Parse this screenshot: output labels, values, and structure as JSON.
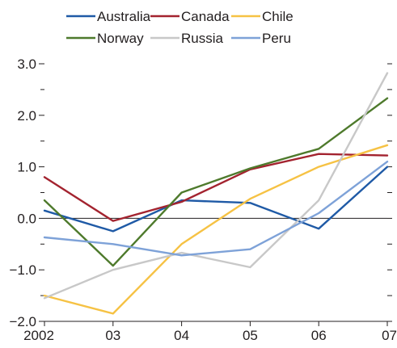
{
  "chart_data": {
    "type": "line",
    "x": [
      "2002",
      "03",
      "04",
      "05",
      "06",
      "07"
    ],
    "ylim": [
      -2.0,
      3.0
    ],
    "yticks": [
      {
        "value": 3.0,
        "label": "3.0"
      },
      {
        "value": 2.0,
        "label": "2.0"
      },
      {
        "value": 1.0,
        "label": "1.0"
      },
      {
        "value": 0.0,
        "label": "0.0"
      },
      {
        "value": -1.0,
        "label": "−1.0"
      },
      {
        "value": -2.0,
        "label": "−2.0"
      }
    ],
    "minor_ytick_step": 0.5,
    "zero_line": true,
    "grid": false,
    "legend_position": "top",
    "series": [
      {
        "name": "Australia",
        "color": "#1f5aa6",
        "values": [
          0.15,
          -0.25,
          0.35,
          0.3,
          -0.2,
          1.0
        ]
      },
      {
        "name": "Canada",
        "color": "#a3232f",
        "values": [
          0.8,
          -0.05,
          0.32,
          0.95,
          1.25,
          1.22
        ]
      },
      {
        "name": "Chile",
        "color": "#f6c244",
        "values": [
          -1.5,
          -1.85,
          -0.5,
          0.38,
          1.0,
          1.42
        ]
      },
      {
        "name": "Norway",
        "color": "#4e7a2c",
        "values": [
          0.35,
          -0.92,
          0.5,
          0.97,
          1.35,
          2.33
        ]
      },
      {
        "name": "Russia",
        "color": "#c8c8c8",
        "values": [
          -1.55,
          -1.0,
          -0.67,
          -0.95,
          0.35,
          2.82
        ]
      },
      {
        "name": "Peru",
        "color": "#7ea2d8",
        "values": [
          -0.37,
          -0.5,
          -0.72,
          -0.6,
          0.1,
          1.1
        ]
      }
    ]
  }
}
